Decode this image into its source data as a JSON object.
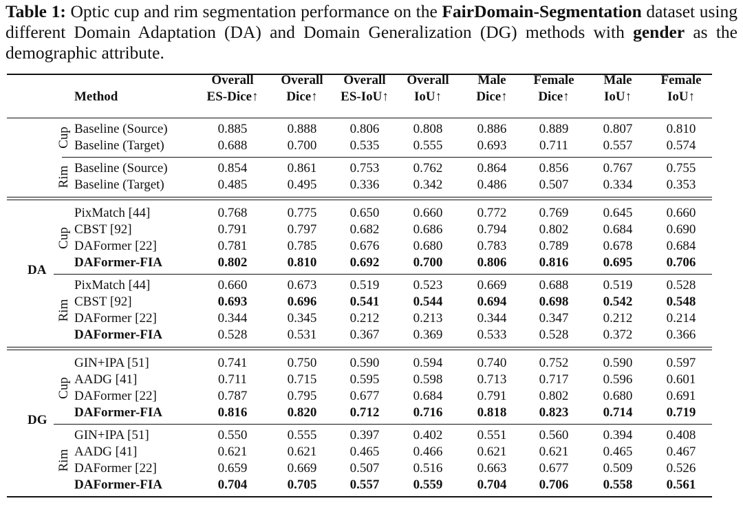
{
  "caption": [
    {
      "text": "Table 1:",
      "bold": true
    },
    {
      "text": " Optic cup and rim segmentation performance on the ",
      "bold": false
    },
    {
      "text": "FairDomain-Segmentation",
      "bold": true
    },
    {
      "text": " dataset using different Domain Adaptation (DA) and Domain Generalization (DG) methods with ",
      "bold": false
    },
    {
      "text": "gender",
      "bold": true
    },
    {
      "text": " as the demographic attribute.",
      "bold": false
    }
  ],
  "table": {
    "columns": [
      [
        "Method"
      ],
      [
        "Overall",
        "ES-Dice↑"
      ],
      [
        "Overall",
        "Dice↑"
      ],
      [
        "Overall",
        "ES-IoU↑"
      ],
      [
        "Overall",
        "IoU↑"
      ],
      [
        "Male",
        "Dice↑"
      ],
      [
        "Female",
        "Dice↑"
      ],
      [
        "Male",
        "IoU↑"
      ],
      [
        "Female",
        "IoU↑"
      ]
    ],
    "sections": [
      {
        "blocks": [
          {
            "part": "Cup",
            "rows": [
              {
                "method": "Baseline (Source)",
                "method_bold": false,
                "values_bold": false,
                "values": [
                  "0.885",
                  "0.888",
                  "0.806",
                  "0.808",
                  "0.886",
                  "0.889",
                  "0.807",
                  "0.810"
                ]
              },
              {
                "method": "Baseline (Target)",
                "method_bold": false,
                "values_bold": false,
                "values": [
                  "0.688",
                  "0.700",
                  "0.535",
                  "0.555",
                  "0.693",
                  "0.711",
                  "0.557",
                  "0.574"
                ]
              }
            ]
          },
          {
            "part": "Rim",
            "rows": [
              {
                "method": "Baseline (Source)",
                "method_bold": false,
                "values_bold": false,
                "values": [
                  "0.854",
                  "0.861",
                  "0.753",
                  "0.762",
                  "0.864",
                  "0.856",
                  "0.767",
                  "0.755"
                ]
              },
              {
                "method": "Baseline (Target)",
                "method_bold": false,
                "values_bold": false,
                "values": [
                  "0.485",
                  "0.495",
                  "0.336",
                  "0.342",
                  "0.486",
                  "0.507",
                  "0.334",
                  "0.353"
                ]
              }
            ]
          }
        ]
      },
      {
        "setting": "DA",
        "blocks": [
          {
            "part": "Cup",
            "rows": [
              {
                "method": "PixMatch [44]",
                "method_bold": false,
                "values_bold": false,
                "values": [
                  "0.768",
                  "0.775",
                  "0.650",
                  "0.660",
                  "0.772",
                  "0.769",
                  "0.645",
                  "0.660"
                ]
              },
              {
                "method": "CBST [92]",
                "method_bold": false,
                "values_bold": false,
                "values": [
                  "0.791",
                  "0.797",
                  "0.682",
                  "0.686",
                  "0.794",
                  "0.802",
                  "0.684",
                  "0.690"
                ]
              },
              {
                "method": "DAFormer [22]",
                "method_bold": false,
                "values_bold": false,
                "values": [
                  "0.781",
                  "0.785",
                  "0.676",
                  "0.680",
                  "0.783",
                  "0.789",
                  "0.678",
                  "0.684"
                ]
              },
              {
                "method": "DAFormer-FIA",
                "method_bold": true,
                "values_bold": true,
                "values": [
                  "0.802",
                  "0.810",
                  "0.692",
                  "0.700",
                  "0.806",
                  "0.816",
                  "0.695",
                  "0.706"
                ]
              }
            ]
          },
          {
            "part": "Rim",
            "rows": [
              {
                "method": "PixMatch [44]",
                "method_bold": false,
                "values_bold": false,
                "values": [
                  "0.660",
                  "0.673",
                  "0.519",
                  "0.523",
                  "0.669",
                  "0.688",
                  "0.519",
                  "0.528"
                ]
              },
              {
                "method": "CBST [92]",
                "method_bold": false,
                "values_bold": true,
                "values": [
                  "0.693",
                  "0.696",
                  "0.541",
                  "0.544",
                  "0.694",
                  "0.698",
                  "0.542",
                  "0.548"
                ]
              },
              {
                "method": "DAFormer [22]",
                "method_bold": false,
                "values_bold": false,
                "values": [
                  "0.344",
                  "0.345",
                  "0.212",
                  "0.213",
                  "0.344",
                  "0.347",
                  "0.212",
                  "0.214"
                ]
              },
              {
                "method": "DAFormer-FIA",
                "method_bold": true,
                "values_bold": false,
                "values": [
                  "0.528",
                  "0.531",
                  "0.367",
                  "0.369",
                  "0.533",
                  "0.528",
                  "0.372",
                  "0.366"
                ]
              }
            ]
          }
        ]
      },
      {
        "setting": "DG",
        "blocks": [
          {
            "part": "Cup",
            "rows": [
              {
                "method": "GIN+IPA [51]",
                "method_bold": false,
                "values_bold": false,
                "values": [
                  "0.741",
                  "0.750",
                  "0.590",
                  "0.594",
                  "0.740",
                  "0.752",
                  "0.590",
                  "0.597"
                ]
              },
              {
                "method": "AADG [41]",
                "method_bold": false,
                "values_bold": false,
                "values": [
                  "0.711",
                  "0.715",
                  "0.595",
                  "0.598",
                  "0.713",
                  "0.717",
                  "0.596",
                  "0.601"
                ]
              },
              {
                "method": "DAFormer [22]",
                "method_bold": false,
                "values_bold": false,
                "values": [
                  "0.787",
                  "0.795",
                  "0.677",
                  "0.684",
                  "0.791",
                  "0.802",
                  "0.680",
                  "0.691"
                ]
              },
              {
                "method": "DAFormer-FIA",
                "method_bold": true,
                "values_bold": true,
                "values": [
                  "0.816",
                  "0.820",
                  "0.712",
                  "0.716",
                  "0.818",
                  "0.823",
                  "0.714",
                  "0.719"
                ]
              }
            ]
          },
          {
            "part": "Rim",
            "rows": [
              {
                "method": "GIN+IPA [51]",
                "method_bold": false,
                "values_bold": false,
                "values": [
                  "0.550",
                  "0.555",
                  "0.397",
                  "0.402",
                  "0.551",
                  "0.560",
                  "0.394",
                  "0.408"
                ]
              },
              {
                "method": "AADG [41]",
                "method_bold": false,
                "values_bold": false,
                "values": [
                  "0.621",
                  "0.621",
                  "0.465",
                  "0.466",
                  "0.621",
                  "0.621",
                  "0.465",
                  "0.467"
                ]
              },
              {
                "method": "DAFormer [22]",
                "method_bold": false,
                "values_bold": false,
                "values": [
                  "0.659",
                  "0.669",
                  "0.507",
                  "0.516",
                  "0.663",
                  "0.677",
                  "0.509",
                  "0.526"
                ]
              },
              {
                "method": "DAFormer-FIA",
                "method_bold": true,
                "values_bold": true,
                "values": [
                  "0.704",
                  "0.705",
                  "0.557",
                  "0.559",
                  "0.704",
                  "0.706",
                  "0.558",
                  "0.561"
                ]
              }
            ]
          }
        ]
      }
    ]
  }
}
